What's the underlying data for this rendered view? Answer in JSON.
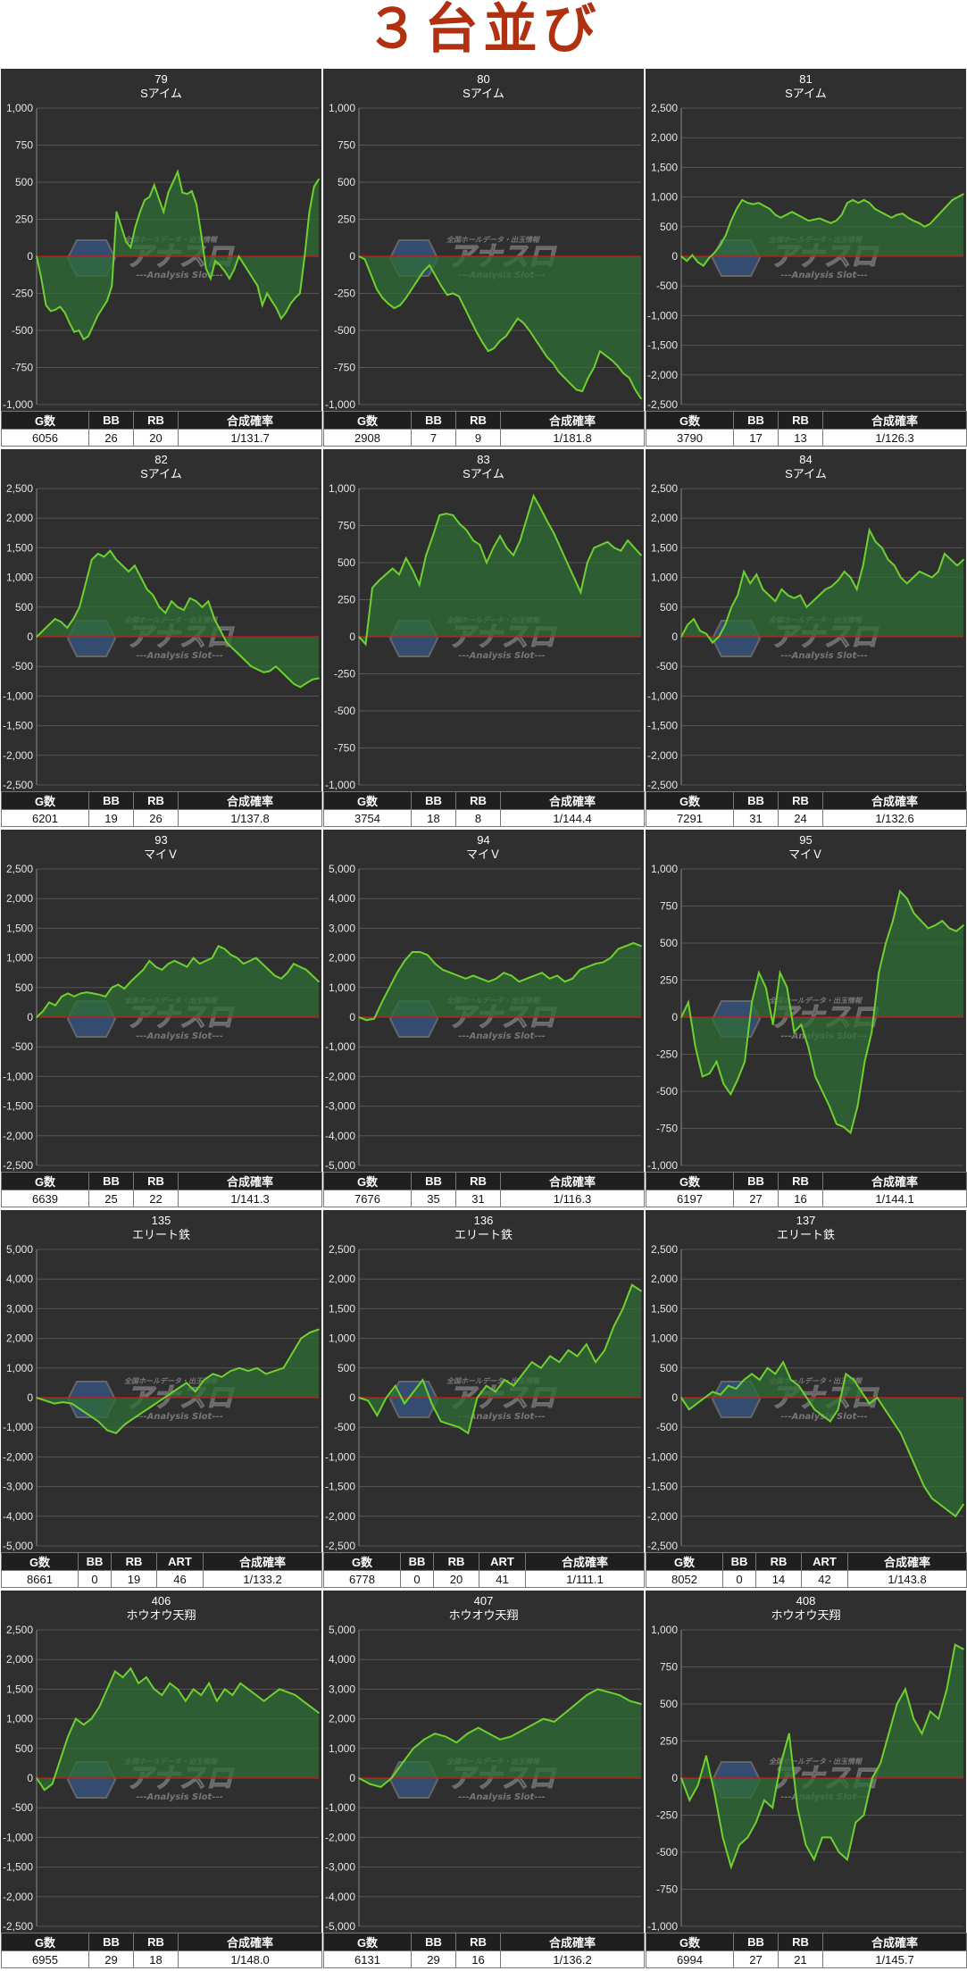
{
  "page_title": "３台並び",
  "colors": {
    "line": "#6fd12f",
    "fill": "#2f6e36",
    "zero": "#d01818",
    "plot_bg": "#2f2f2f",
    "title": "#b03010"
  },
  "watermark": {
    "brand": "アナスロ",
    "sub": "---Analysis Slot---",
    "top": "全国ホールデータ・出玉情報"
  },
  "panels": [
    {
      "no": "79",
      "machine": "Sアイム",
      "ylim": [
        -1000,
        1000
      ],
      "ticks": [
        1000,
        750,
        500,
        250,
        0,
        -250,
        -500,
        -750,
        -1000
      ],
      "stats_headers": [
        "G数",
        "BB",
        "RB",
        "合成確率"
      ],
      "stats_values": [
        "6056",
        "26",
        "20",
        "1/131.7"
      ],
      "chart_data": {
        "type": "area",
        "y": [
          0,
          -150,
          -330,
          -370,
          -360,
          -340,
          -380,
          -450,
          -510,
          -500,
          -560,
          -540,
          -470,
          -400,
          -350,
          -300,
          -200,
          300,
          200,
          100,
          60,
          200,
          300,
          380,
          400,
          480,
          390,
          300,
          430,
          500,
          570,
          430,
          420,
          440,
          350,
          150,
          -80,
          -150,
          -30,
          -60,
          -100,
          -150,
          -90,
          0,
          -50,
          -100,
          -150,
          -200,
          -330,
          -250,
          -300,
          -350,
          -420,
          -380,
          -320,
          -280,
          -250,
          0,
          300,
          470,
          520
        ]
      }
    },
    {
      "no": "80",
      "machine": "Sアイム",
      "ylim": [
        -1000,
        1000
      ],
      "ticks": [
        1000,
        750,
        500,
        250,
        0,
        -250,
        -500,
        -750,
        -1000
      ],
      "stats_headers": [
        "G数",
        "BB",
        "RB",
        "合成確率"
      ],
      "stats_values": [
        "2908",
        "7",
        "9",
        "1/181.8"
      ],
      "chart_data": {
        "type": "area",
        "y": [
          0,
          -20,
          -120,
          -220,
          -280,
          -320,
          -350,
          -330,
          -280,
          -220,
          -160,
          -100,
          -60,
          -130,
          -200,
          -260,
          -250,
          -270,
          -350,
          -430,
          -510,
          -580,
          -640,
          -620,
          -570,
          -540,
          -480,
          -420,
          -450,
          -500,
          -560,
          -620,
          -680,
          -720,
          -780,
          -820,
          -860,
          -900,
          -910,
          -820,
          -750,
          -640,
          -670,
          -700,
          -740,
          -790,
          -820,
          -900,
          -960
        ]
      }
    },
    {
      "no": "81",
      "machine": "Sアイム",
      "ylim": [
        -2500,
        2500
      ],
      "ticks": [
        2500,
        2000,
        1500,
        1000,
        500,
        0,
        -500,
        -1000,
        -1500,
        -2000,
        -2500
      ],
      "stats_headers": [
        "G数",
        "BB",
        "RB",
        "合成確率"
      ],
      "stats_values": [
        "3790",
        "17",
        "13",
        "1/126.3"
      ],
      "chart_data": {
        "type": "area",
        "y": [
          0,
          -80,
          20,
          -100,
          -160,
          -30,
          60,
          180,
          350,
          600,
          800,
          950,
          900,
          880,
          900,
          850,
          800,
          700,
          650,
          700,
          750,
          700,
          650,
          600,
          620,
          640,
          600,
          560,
          600,
          700,
          900,
          950,
          900,
          950,
          900,
          800,
          750,
          700,
          650,
          700,
          720,
          650,
          600,
          560,
          500,
          550,
          650,
          750,
          850,
          950,
          1000,
          1050
        ]
      }
    },
    {
      "no": "82",
      "machine": "Sアイム",
      "ylim": [
        -2500,
        2500
      ],
      "ticks": [
        2500,
        2000,
        1500,
        1000,
        500,
        0,
        -500,
        -1000,
        -1500,
        -2000,
        -2500
      ],
      "stats_headers": [
        "G数",
        "BB",
        "RB",
        "合成確率"
      ],
      "stats_values": [
        "6201",
        "19",
        "26",
        "1/137.8"
      ],
      "chart_data": {
        "type": "area",
        "y": [
          0,
          100,
          200,
          300,
          250,
          150,
          300,
          500,
          900,
          1300,
          1400,
          1350,
          1450,
          1300,
          1200,
          1100,
          1200,
          1000,
          800,
          700,
          500,
          400,
          600,
          500,
          450,
          650,
          600,
          500,
          600,
          300,
          100,
          -100,
          -200,
          -300,
          -400,
          -500,
          -550,
          -600,
          -580,
          -500,
          -600,
          -700,
          -800,
          -850,
          -780,
          -720,
          -700
        ]
      }
    },
    {
      "no": "83",
      "machine": "Sアイム",
      "ylim": [
        -1000,
        1000
      ],
      "ticks": [
        1000,
        750,
        500,
        250,
        0,
        -250,
        -500,
        -750,
        -1000
      ],
      "stats_headers": [
        "G数",
        "BB",
        "RB",
        "合成確率"
      ],
      "stats_values": [
        "3754",
        "18",
        "8",
        "1/144.4"
      ],
      "chart_data": {
        "type": "area",
        "y": [
          0,
          -50,
          330,
          380,
          420,
          460,
          420,
          530,
          450,
          350,
          550,
          680,
          820,
          830,
          820,
          760,
          720,
          650,
          620,
          500,
          600,
          680,
          600,
          550,
          650,
          800,
          950,
          870,
          780,
          700,
          600,
          500,
          400,
          300,
          500,
          600,
          620,
          640,
          600,
          580,
          650,
          600,
          550
        ]
      }
    },
    {
      "no": "84",
      "machine": "Sアイム",
      "ylim": [
        -2500,
        2500
      ],
      "ticks": [
        2500,
        2000,
        1500,
        1000,
        500,
        0,
        -500,
        -1000,
        -1500,
        -2000,
        -2500
      ],
      "stats_headers": [
        "G数",
        "BB",
        "RB",
        "合成確率"
      ],
      "stats_values": [
        "7291",
        "31",
        "24",
        "1/132.6"
      ],
      "chart_data": {
        "type": "area",
        "y": [
          0,
          200,
          300,
          100,
          50,
          -100,
          0,
          200,
          500,
          700,
          1100,
          900,
          1050,
          800,
          700,
          600,
          800,
          700,
          650,
          700,
          500,
          600,
          700,
          800,
          850,
          950,
          1100,
          1000,
          800,
          1200,
          1800,
          1600,
          1500,
          1300,
          1200,
          1000,
          900,
          1000,
          1100,
          1050,
          1000,
          1100,
          1400,
          1300,
          1200,
          1300
        ]
      }
    },
    {
      "no": "93",
      "machine": "マイＶ",
      "ylim": [
        -2500,
        2500
      ],
      "ticks": [
        2500,
        2000,
        1500,
        1000,
        500,
        0,
        -500,
        -1000,
        -1500,
        -2000,
        -2500
      ],
      "stats_headers": [
        "G数",
        "BB",
        "RB",
        "合成確率"
      ],
      "stats_values": [
        "6639",
        "25",
        "22",
        "1/141.3"
      ],
      "chart_data": {
        "type": "area",
        "y": [
          0,
          100,
          250,
          200,
          350,
          400,
          350,
          400,
          420,
          400,
          380,
          350,
          500,
          550,
          480,
          600,
          700,
          800,
          950,
          850,
          800,
          900,
          950,
          900,
          850,
          1000,
          900,
          950,
          1000,
          1200,
          1150,
          1050,
          1000,
          900,
          950,
          1000,
          900,
          800,
          700,
          650,
          750,
          900,
          850,
          800,
          700,
          600
        ]
      }
    },
    {
      "no": "94",
      "machine": "マイＶ",
      "ylim": [
        -5000,
        5000
      ],
      "ticks": [
        5000,
        4000,
        3000,
        2000,
        1000,
        0,
        -1000,
        -2000,
        -3000,
        -4000,
        -5000
      ],
      "stats_headers": [
        "G数",
        "BB",
        "RB",
        "合成確率"
      ],
      "stats_values": [
        "7676",
        "35",
        "31",
        "1/116.3"
      ],
      "chart_data": {
        "type": "area",
        "y": [
          0,
          -100,
          -50,
          500,
          1000,
          1500,
          1900,
          2200,
          2200,
          2100,
          1800,
          1600,
          1500,
          1400,
          1300,
          1400,
          1300,
          1200,
          1300,
          1500,
          1400,
          1200,
          1300,
          1400,
          1500,
          1300,
          1400,
          1200,
          1300,
          1600,
          1700,
          1800,
          1850,
          2000,
          2300,
          2400,
          2500,
          2400
        ]
      }
    },
    {
      "no": "95",
      "machine": "マイＶ",
      "ylim": [
        -1000,
        1000
      ],
      "ticks": [
        1000,
        750,
        500,
        250,
        0,
        -250,
        -500,
        -750,
        -1000
      ],
      "stats_headers": [
        "G数",
        "BB",
        "RB",
        "合成確率"
      ],
      "stats_values": [
        "6197",
        "27",
        "16",
        "1/144.1"
      ],
      "chart_data": {
        "type": "area",
        "y": [
          0,
          100,
          -200,
          -400,
          -380,
          -300,
          -450,
          -520,
          -420,
          -300,
          100,
          300,
          200,
          -50,
          300,
          200,
          -100,
          -50,
          -200,
          -400,
          -500,
          -600,
          -720,
          -740,
          -780,
          -600,
          -300,
          -100,
          300,
          500,
          650,
          850,
          800,
          700,
          650,
          600,
          620,
          650,
          600,
          580,
          620
        ]
      }
    },
    {
      "no": "135",
      "machine": "エリート鉄",
      "ylim": [
        -5000,
        5000
      ],
      "ticks": [
        5000,
        4000,
        3000,
        2000,
        1000,
        0,
        -1000,
        -2000,
        -3000,
        -4000,
        -5000
      ],
      "stats_headers": [
        "G数",
        "BB",
        "RB",
        "ART",
        "合成確率"
      ],
      "stats_values": [
        "8661",
        "0",
        "19",
        "46",
        "1/133.2"
      ],
      "chart_data": {
        "type": "area",
        "y": [
          0,
          -100,
          -200,
          -150,
          -200,
          -400,
          -600,
          -800,
          -1100,
          -1200,
          -900,
          -700,
          -500,
          -300,
          -100,
          100,
          300,
          500,
          200,
          600,
          800,
          700,
          900,
          1000,
          900,
          1000,
          800,
          900,
          1000,
          1500,
          2000,
          2200,
          2300
        ]
      }
    },
    {
      "no": "136",
      "machine": "エリート鉄",
      "ylim": [
        -2500,
        2500
      ],
      "ticks": [
        2500,
        2000,
        1500,
        1000,
        500,
        0,
        -500,
        -1000,
        -1500,
        -2000,
        -2500
      ],
      "stats_headers": [
        "G数",
        "BB",
        "RB",
        "ART",
        "合成確率"
      ],
      "stats_values": [
        "6778",
        "0",
        "20",
        "41",
        "1/111.1"
      ],
      "chart_data": {
        "type": "area",
        "y": [
          0,
          -50,
          -300,
          0,
          200,
          -100,
          100,
          300,
          -100,
          -400,
          -450,
          -500,
          -600,
          0,
          200,
          100,
          300,
          200,
          400,
          600,
          500,
          700,
          600,
          800,
          700,
          900,
          600,
          800,
          1200,
          1500,
          1900,
          1800
        ]
      }
    },
    {
      "no": "137",
      "machine": "エリート鉄",
      "ylim": [
        -2500,
        2500
      ],
      "ticks": [
        2500,
        2000,
        1500,
        1000,
        500,
        0,
        -500,
        -1000,
        -1500,
        -2000,
        -2500
      ],
      "stats_headers": [
        "G数",
        "BB",
        "RB",
        "ART",
        "合成確率"
      ],
      "stats_values": [
        "8052",
        "0",
        "14",
        "42",
        "1/143.8"
      ],
      "chart_data": {
        "type": "area",
        "y": [
          0,
          -200,
          -100,
          0,
          100,
          50,
          200,
          150,
          300,
          400,
          300,
          500,
          400,
          600,
          300,
          200,
          0,
          -200,
          -300,
          -400,
          -200,
          400,
          300,
          100,
          -100,
          0,
          -200,
          -400,
          -600,
          -900,
          -1200,
          -1500,
          -1700,
          -1800,
          -1900,
          -2000,
          -1800
        ]
      }
    },
    {
      "no": "406",
      "machine": "ホウオウ天翔",
      "ylim": [
        -2500,
        2500
      ],
      "ticks": [
        2500,
        2000,
        1500,
        1000,
        500,
        0,
        -500,
        -1000,
        -1500,
        -2000,
        -2500
      ],
      "stats_headers": [
        "G数",
        "BB",
        "RB",
        "合成確率"
      ],
      "stats_values": [
        "6955",
        "29",
        "18",
        "1/148.0"
      ],
      "chart_data": {
        "type": "area",
        "y": [
          0,
          -200,
          -100,
          300,
          700,
          1000,
          900,
          1000,
          1200,
          1500,
          1800,
          1700,
          1850,
          1600,
          1700,
          1500,
          1400,
          1600,
          1500,
          1300,
          1500,
          1400,
          1600,
          1300,
          1500,
          1400,
          1600,
          1500,
          1400,
          1300,
          1400,
          1500,
          1450,
          1400,
          1300,
          1200,
          1100
        ]
      }
    },
    {
      "no": "407",
      "machine": "ホウオウ天翔",
      "ylim": [
        -5000,
        5000
      ],
      "ticks": [
        5000,
        4000,
        3000,
        2000,
        1000,
        0,
        -1000,
        -2000,
        -3000,
        -4000,
        -5000
      ],
      "stats_headers": [
        "G数",
        "BB",
        "RB",
        "合成確率"
      ],
      "stats_values": [
        "6131",
        "29",
        "16",
        "1/136.2"
      ],
      "chart_data": {
        "type": "area",
        "y": [
          0,
          -200,
          -300,
          0,
          500,
          1000,
          1300,
          1500,
          1400,
          1200,
          1500,
          1700,
          1500,
          1300,
          1400,
          1600,
          1800,
          2000,
          1900,
          2200,
          2500,
          2800,
          3000,
          2900,
          2800,
          2600,
          2500
        ]
      }
    },
    {
      "no": "408",
      "machine": "ホウオウ天翔",
      "ylim": [
        -1000,
        1000
      ],
      "ticks": [
        1000,
        750,
        500,
        250,
        0,
        -250,
        -500,
        -750,
        -1000
      ],
      "stats_headers": [
        "G数",
        "BB",
        "RB",
        "合成確率"
      ],
      "stats_values": [
        "6994",
        "27",
        "21",
        "1/145.7"
      ],
      "chart_data": {
        "type": "area",
        "y": [
          0,
          -150,
          -50,
          150,
          -100,
          -400,
          -600,
          -450,
          -400,
          -300,
          -150,
          -200,
          100,
          300,
          -200,
          -450,
          -550,
          -400,
          -400,
          -500,
          -550,
          -300,
          -250,
          0,
          100,
          300,
          500,
          600,
          400,
          300,
          450,
          400,
          600,
          900,
          870
        ]
      }
    }
  ]
}
